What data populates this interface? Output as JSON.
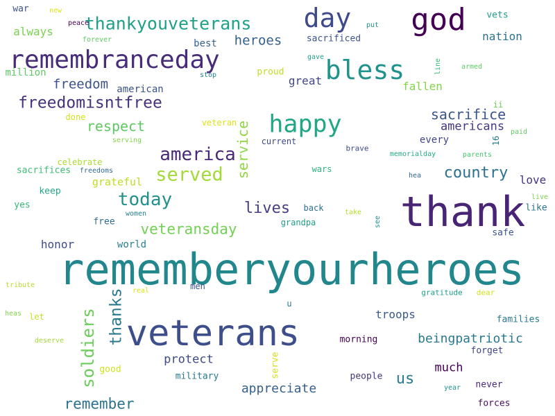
{
  "words": [
    {
      "text": "rememberyourheroes",
      "color": "#21878d"
    },
    {
      "text": "thank",
      "color": "#482475"
    },
    {
      "text": "veterans",
      "color": "#3d4e8a"
    },
    {
      "text": "god",
      "color": "#440154"
    },
    {
      "text": "remembranceday",
      "color": "#472c7a"
    },
    {
      "text": "bless",
      "color": "#20928c"
    },
    {
      "text": "day",
      "color": "#3e4a89"
    },
    {
      "text": "happy",
      "color": "#22a785"
    },
    {
      "text": "thankyouveterans",
      "color": "#1fa187"
    },
    {
      "text": "america",
      "color": "#482979"
    },
    {
      "text": "served",
      "color": "#a2da37"
    },
    {
      "text": "today",
      "color": "#21918c"
    },
    {
      "text": "freedomisntfree",
      "color": "#46327e"
    },
    {
      "text": "soldiers",
      "color": "#6ccd5a"
    },
    {
      "text": "thanks",
      "color": "#2a788e"
    },
    {
      "text": "service",
      "color": "#8fd744"
    },
    {
      "text": "veteransday",
      "color": "#74d055"
    },
    {
      "text": "country",
      "color": "#2d708e"
    },
    {
      "text": "lives",
      "color": "#433e85"
    },
    {
      "text": "remember",
      "color": "#2c728e"
    },
    {
      "text": "sacrifice",
      "color": "#3a538b"
    },
    {
      "text": "respect",
      "color": "#5ec962"
    },
    {
      "text": "freedom",
      "color": "#3b528b"
    },
    {
      "text": "heroes",
      "color": "#355f8d"
    },
    {
      "text": "beingpatriotic",
      "color": "#2a788e"
    },
    {
      "text": "appreciate",
      "color": "#355f8d"
    },
    {
      "text": "us",
      "color": "#287c8e"
    },
    {
      "text": "americans",
      "color": "#453781"
    },
    {
      "text": "protect",
      "color": "#3e4989"
    },
    {
      "text": "troops",
      "color": "#38588c"
    },
    {
      "text": "much",
      "color": "#440154"
    },
    {
      "text": "great",
      "color": "#404688"
    },
    {
      "text": "fallen",
      "color": "#84d44b"
    },
    {
      "text": "always",
      "color": "#7ad151"
    },
    {
      "text": "nation",
      "color": "#2c728e"
    },
    {
      "text": "honor",
      "color": "#3e4a89"
    },
    {
      "text": "love",
      "color": "#46337f"
    },
    {
      "text": "grateful",
      "color": "#bddf26"
    },
    {
      "text": "american",
      "color": "#3b528b"
    },
    {
      "text": "every",
      "color": "#414487"
    },
    {
      "text": "best",
      "color": "#33638d"
    },
    {
      "text": "world",
      "color": "#277f8e"
    },
    {
      "text": "million",
      "color": "#5ec962"
    },
    {
      "text": "sacrificed",
      "color": "#3b528b"
    },
    {
      "text": "proud",
      "color": "#bddf26"
    },
    {
      "text": "free",
      "color": "#2f6c8e"
    },
    {
      "text": "yes",
      "color": "#35b779"
    },
    {
      "text": "keep",
      "color": "#22a785"
    },
    {
      "text": "sacrifices",
      "color": "#3fbc73"
    },
    {
      "text": "safe",
      "color": "#3b528b"
    },
    {
      "text": "forget",
      "color": "#414487"
    },
    {
      "text": "families",
      "color": "#2a788e"
    },
    {
      "text": "people",
      "color": "#453781"
    },
    {
      "text": "never",
      "color": "#482878"
    },
    {
      "text": "forces",
      "color": "#471063"
    },
    {
      "text": "morning",
      "color": "#440154"
    },
    {
      "text": "military",
      "color": "#2a788e"
    },
    {
      "text": "serve",
      "color": "#d8e219"
    },
    {
      "text": "good",
      "color": "#d0e11c"
    },
    {
      "text": "like",
      "color": "#2c728e"
    },
    {
      "text": "vets",
      "color": "#1f9e89"
    },
    {
      "text": "war",
      "color": "#3b528b"
    },
    {
      "text": "current",
      "color": "#3e4989"
    },
    {
      "text": "celebrate",
      "color": "#addc30"
    },
    {
      "text": "wars",
      "color": "#2db27d"
    },
    {
      "text": "back",
      "color": "#2e6f8e"
    },
    {
      "text": "grandpa",
      "color": "#1f9e89"
    },
    {
      "text": "done",
      "color": "#d0e11c"
    },
    {
      "text": "veteran",
      "color": "#dde318"
    },
    {
      "text": "men",
      "color": "#3b528b"
    },
    {
      "text": "ii",
      "color": "#6ece58"
    },
    {
      "text": "16",
      "color": "#287d8e"
    },
    {
      "text": "brave",
      "color": "#3e4a89"
    },
    {
      "text": "gratitude",
      "color": "#1f9e89"
    },
    {
      "text": "dear",
      "color": "#d0e11c"
    },
    {
      "text": "u",
      "color": "#2a788e"
    },
    {
      "text": "peace",
      "color": "#440154"
    },
    {
      "text": "put",
      "color": "#21918c"
    },
    {
      "text": "gave",
      "color": "#1f9e89"
    },
    {
      "text": "stop",
      "color": "#26828e"
    },
    {
      "text": "forever",
      "color": "#5ec962"
    },
    {
      "text": "new",
      "color": "#dde318"
    },
    {
      "text": "line",
      "color": "#35b779"
    },
    {
      "text": "armed",
      "color": "#5ec962"
    },
    {
      "text": "paid",
      "color": "#5ec962"
    },
    {
      "text": "parents",
      "color": "#4ac16d"
    },
    {
      "text": "memorialday",
      "color": "#22a785"
    },
    {
      "text": "hea",
      "color": "#33638d"
    },
    {
      "text": "live",
      "color": "#7ad151"
    },
    {
      "text": "take",
      "color": "#b5de2b"
    },
    {
      "text": "see",
      "color": "#21918c"
    },
    {
      "text": "women",
      "color": "#277f8e"
    },
    {
      "text": "serving",
      "color": "#84d44b"
    },
    {
      "text": "freedoms",
      "color": "#31688e"
    },
    {
      "text": "tribute",
      "color": "#b5de2b"
    },
    {
      "text": "real",
      "color": "#d8e219"
    },
    {
      "text": "heas",
      "color": "#84d44b"
    },
    {
      "text": "let",
      "color": "#c2df23"
    },
    {
      "text": "deserve",
      "color": "#a2da37"
    },
    {
      "text": "year",
      "color": "#21918c"
    }
  ]
}
